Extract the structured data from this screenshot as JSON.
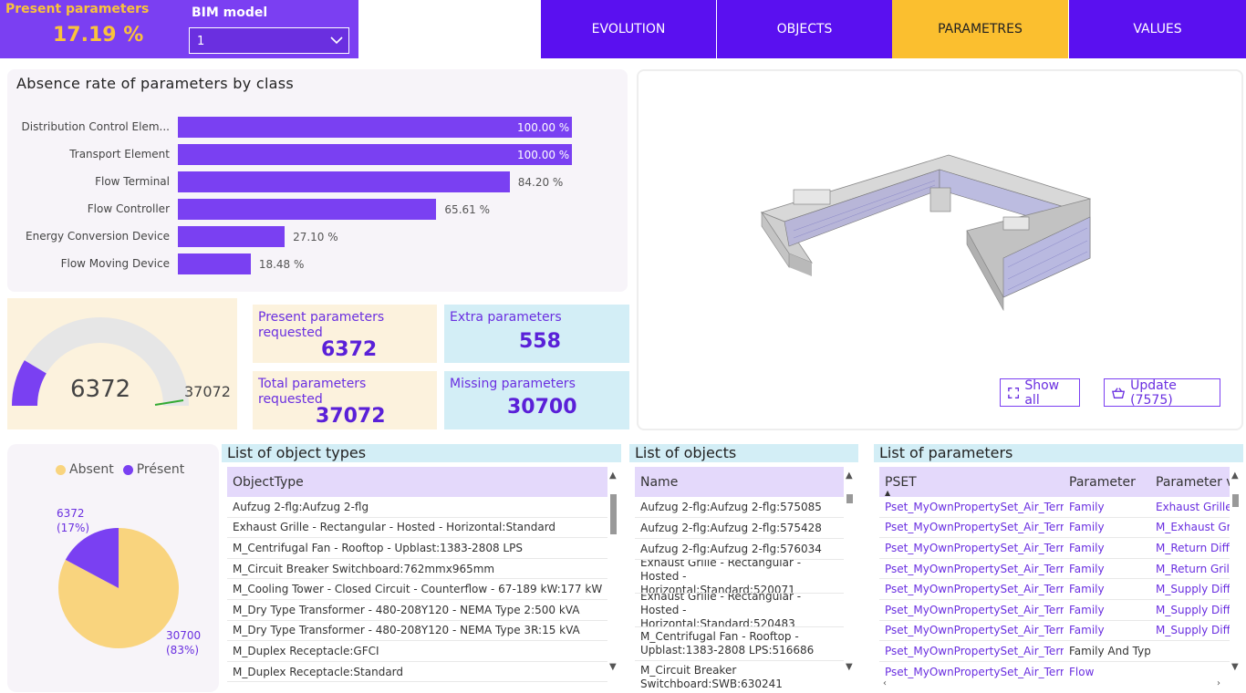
{
  "header": {
    "present_title": "Present parameters",
    "present_value": "17.19 %",
    "bim_label": "BIM model",
    "bim_selected": "1",
    "tabs": [
      "EVOLUTION",
      "OBJECTS",
      "PARAMETRES",
      "VALUES"
    ],
    "active_tab": "PARAMETRES"
  },
  "absence_chart": {
    "title": "Absence rate of parameters by class",
    "chart_data": {
      "type": "bar",
      "orientation": "horizontal",
      "categories": [
        "Distribution Control Elem...",
        "Transport Element",
        "Flow Terminal",
        "Flow Controller",
        "Energy Conversion Device",
        "Flow Moving Device"
      ],
      "values": [
        100.0,
        100.0,
        84.2,
        65.61,
        27.1,
        18.48
      ],
      "labels": [
        "100.00 %",
        "100.00 %",
        "84.20 %",
        "65.61 %",
        "27.10 %",
        "18.48 %"
      ],
      "xlim": [
        0,
        100
      ],
      "color": "#7a40f2"
    }
  },
  "viewer": {
    "show_all": "Show all",
    "update": "Update (7575)"
  },
  "gauge": {
    "value": "6372",
    "max": "37072",
    "fraction": 0.1719
  },
  "kpis": {
    "present_label": "Present parameters requested",
    "present_value": "6372",
    "extra_label": "Extra parameters",
    "extra_value": "558",
    "total_label": "Total parameters requested",
    "total_value": "37072",
    "missing_label": "Missing parameters",
    "missing_value": "30700"
  },
  "pie": {
    "legend_absent": "Absent",
    "legend_present": "Présent",
    "present_count": "6372",
    "present_pct": "(17%)",
    "absent_count": "30700",
    "absent_pct": "(83%)",
    "colors": {
      "absent": "#f9d47e",
      "present": "#7a40f2"
    },
    "chart_data": {
      "type": "pie",
      "categories": [
        "Absent",
        "Présent"
      ],
      "values": [
        30700,
        6372
      ]
    }
  },
  "object_types": {
    "title": "List of object types",
    "header": "ObjectType",
    "rows": [
      "Aufzug 2-flg:Aufzug 2-flg",
      "Exhaust Grille - Rectangular - Hosted - Horizontal:Standard",
      "M_Centrifugal Fan - Rooftop - Upblast:1383-2808 LPS",
      "M_Circuit Breaker Switchboard:762mmx965mm",
      "M_Cooling Tower - Closed Circuit - Counterflow - 67-189 kW:177 kW",
      "M_Dry Type Transformer - 480-208Y120 - NEMA Type 2:500 kVA",
      "M_Dry Type Transformer - 480-208Y120 - NEMA Type 3R:15 kVA",
      "M_Duplex Receptacle:GFCI",
      "M_Duplex Receptacle:Standard"
    ]
  },
  "objects": {
    "title": "List of objects",
    "header": "Name",
    "rows": [
      "Aufzug 2-flg:Aufzug 2-flg:575085",
      "Aufzug 2-flg:Aufzug 2-flg:575428",
      "Aufzug 2-flg:Aufzug 2-flg:576034",
      "Exhaust Grille - Rectangular - Hosted - Horizontal:Standard:520071",
      "Exhaust Grille - Rectangular - Hosted - Horizontal:Standard:520483",
      "M_Centrifugal Fan - Rooftop - Upblast:1383-2808 LPS:516686",
      "M_Circuit Breaker Switchboard:SWB:630241"
    ]
  },
  "parameters": {
    "title": "List of parameters",
    "headers": [
      "PSET",
      "Parameter",
      "Parameter va"
    ],
    "rows": [
      [
        "Pset_MyOwnPropertySet_Air_Terminal",
        "Family",
        "Exhaust Grille - R"
      ],
      [
        "Pset_MyOwnPropertySet_Air_Terminal",
        "Family",
        "M_Exhaust Grill:"
      ],
      [
        "Pset_MyOwnPropertySet_Air_Terminal",
        "Family",
        "M_Return Diffuse"
      ],
      [
        "Pset_MyOwnPropertySet_Air_Terminal",
        "Family",
        "M_Return Grille -"
      ],
      [
        "Pset_MyOwnPropertySet_Air_Terminal",
        "Family",
        "M_Supply Diffuse"
      ],
      [
        "Pset_MyOwnPropertySet_Air_Terminal",
        "Family",
        "M_Supply Diffuse"
      ],
      [
        "Pset_MyOwnPropertySet_Air_Terminal",
        "Family",
        "M_Supply Diffuse"
      ],
      [
        "Pset_MyOwnPropertySet_Air_Terminal",
        "Family And Type",
        ""
      ],
      [
        "Pset_MyOwnPropertySet_Air_Terminal",
        "Flow",
        ""
      ]
    ]
  }
}
